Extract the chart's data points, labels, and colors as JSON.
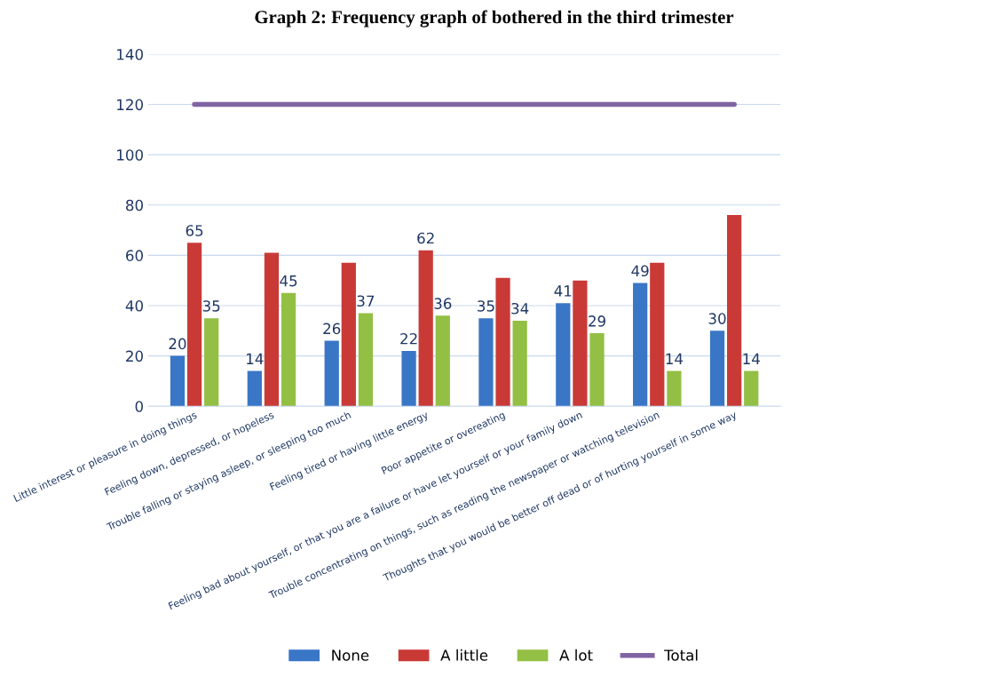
{
  "chart_data": {
    "type": "bar",
    "title": "Graph 2: Frequency graph of bothered in the third trimester",
    "categories": [
      "Little interest or pleasure in doing things",
      "Feeling down, depressed, or hopeless",
      "Trouble falling or staying asleep, or sleeping too much",
      "Feeling tired or having little energy",
      "Poor appetite or overeating",
      "Feeling bad about yourself, or that you are a failure or have let yourself or your family down",
      "Trouble concentrating on things, such as reading the newspaper or watching television",
      "Thoughts that you would be better off dead or of hurting yourself in some way"
    ],
    "series": [
      {
        "name": "None",
        "color": "#3a76c6",
        "values": [
          20,
          14,
          26,
          22,
          35,
          41,
          49,
          30
        ],
        "value_labels": [
          "20",
          "14",
          "26",
          "22",
          "35",
          "41",
          "49",
          "30"
        ]
      },
      {
        "name": "A little",
        "color": "#c93a37",
        "values": [
          65,
          61,
          57,
          62,
          51,
          50,
          57,
          76
        ],
        "value_labels": [
          "65",
          null,
          null,
          "62",
          null,
          null,
          null,
          null
        ]
      },
      {
        "name": "A lot",
        "color": "#93bf44",
        "values": [
          35,
          45,
          37,
          36,
          34,
          29,
          14,
          14
        ],
        "value_labels": [
          "35",
          "45",
          "37",
          "36",
          "34",
          "29",
          "14",
          "14"
        ]
      },
      {
        "name": "Total",
        "type": "line",
        "color": "#8064a2",
        "values": [
          120,
          120,
          120,
          120,
          120,
          120,
          120,
          120
        ]
      }
    ],
    "ylim": [
      0,
      140
    ],
    "yticks": [
      0,
      20,
      40,
      60,
      80,
      100,
      120,
      140
    ],
    "grid": "y",
    "legend": "bottom"
  }
}
